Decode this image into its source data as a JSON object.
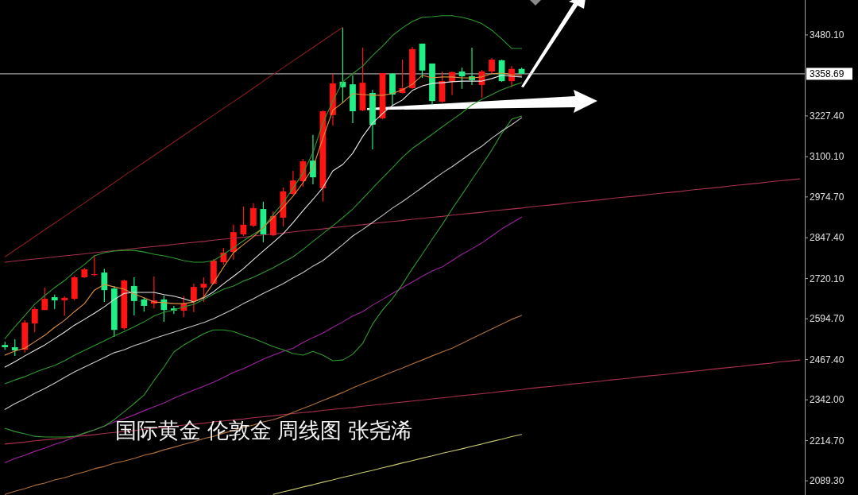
{
  "chart_data": {
    "type": "candlestick",
    "title": "国际黄金 伦敦金 周线图 张尧浠",
    "categories": [
      null,
      null,
      null,
      null,
      null,
      null,
      null,
      null,
      null,
      null,
      null,
      null,
      null,
      null,
      null,
      null,
      null,
      null,
      null,
      null,
      null,
      null,
      null,
      null,
      null,
      null,
      null,
      null,
      null,
      null,
      null,
      null,
      null,
      null,
      null,
      null,
      null,
      null,
      null,
      null,
      null,
      null,
      null,
      null,
      null,
      null,
      null,
      null,
      null,
      null,
      null,
      null,
      null,
      null,
      null,
      null,
      null,
      null,
      null,
      null,
      null,
      null,
      null,
      null,
      null,
      null,
      null,
      null,
      null,
      null,
      null,
      null,
      null,
      null,
      null,
      null,
      null,
      null,
      null,
      null,
      null
    ],
    "ohlc": [
      [
        2513,
        2523,
        2498,
        2506
      ],
      [
        2506,
        2531,
        2479,
        2496
      ],
      [
        2498,
        2590,
        2489,
        2583
      ],
      [
        2580,
        2632,
        2553,
        2625
      ],
      [
        2622,
        2692,
        2622,
        2657
      ],
      [
        2662,
        2670,
        2625,
        2652
      ],
      [
        2652,
        2665,
        2605,
        2660
      ],
      [
        2657,
        2729,
        2652,
        2724
      ],
      [
        2724,
        2754,
        2722,
        2749
      ],
      [
        2731,
        2793,
        2727,
        2734
      ],
      [
        2739,
        2751,
        2647,
        2684
      ],
      [
        2689,
        2697,
        2538,
        2560
      ],
      [
        2565,
        2717,
        2560,
        2714
      ],
      [
        2697,
        2724,
        2605,
        2650
      ],
      [
        2655,
        2660,
        2617,
        2635
      ],
      [
        2642,
        2727,
        2627,
        2652
      ],
      [
        2655,
        2667,
        2585,
        2622
      ],
      [
        2627,
        2635,
        2610,
        2620
      ],
      [
        2620,
        2665,
        2600,
        2642
      ],
      [
        2650,
        2704,
        2615,
        2694
      ],
      [
        2692,
        2724,
        2647,
        2704
      ],
      [
        2704,
        2781,
        2702,
        2776
      ],
      [
        2771,
        2816,
        2764,
        2801
      ],
      [
        2803,
        2888,
        2779,
        2865
      ],
      [
        2858,
        2945,
        2853,
        2888
      ],
      [
        2885,
        2955,
        2880,
        2940
      ],
      [
        2937,
        2960,
        2833,
        2858
      ],
      [
        2855,
        2930,
        2853,
        2915
      ],
      [
        2910,
        3004,
        2883,
        2992
      ],
      [
        2984,
        3056,
        2982,
        3026
      ],
      [
        3024,
        3093,
        3007,
        3086
      ],
      [
        3088,
        3168,
        3014,
        3036
      ],
      [
        3002,
        3245,
        2960,
        3242
      ],
      [
        3230,
        3359,
        3197,
        3329
      ],
      [
        3334,
        3502,
        3267,
        3317
      ],
      [
        3326,
        3354,
        3205,
        3242
      ],
      [
        3245,
        3440,
        3242,
        3331
      ],
      [
        3299,
        3309,
        3123,
        3200
      ],
      [
        3220,
        3361,
        3217,
        3361
      ],
      [
        3359,
        3361,
        3260,
        3294
      ],
      [
        3299,
        3403,
        3297,
        3314
      ],
      [
        3314,
        3443,
        3312,
        3436
      ],
      [
        3453,
        3453,
        3346,
        3369
      ],
      [
        3391,
        3391,
        3262,
        3274
      ],
      [
        3272,
        3366,
        3269,
        3336
      ],
      [
        3334,
        3366,
        3292,
        3364
      ],
      [
        3366,
        3378,
        3312,
        3351
      ],
      [
        3351,
        3440,
        3324,
        3339
      ],
      [
        3324,
        3371,
        3284,
        3366
      ],
      [
        3366,
        3408,
        3361,
        3403
      ],
      [
        3401,
        3403,
        3334,
        3336
      ],
      [
        3336,
        3383,
        3317,
        3374
      ],
      [
        3374,
        3378,
        3359,
        3359
      ],
      null,
      null,
      null,
      null,
      null,
      null,
      null,
      null,
      null,
      null,
      null,
      null,
      null,
      null,
      null,
      null,
      null,
      null,
      null,
      null,
      null,
      null,
      null,
      null,
      null,
      null,
      null,
      null
    ],
    "colors": [
      "#22ee88",
      "#22ee88",
      "#ff1414",
      "#ff1414",
      "#ff1414",
      "#22ee88",
      "#ff1414",
      "#ff1414",
      "#ff1414",
      "#ff1414",
      "#22ee88",
      "#22ee88",
      "#ff1414",
      "#22ee88",
      "#22ee88",
      "#ff1414",
      "#22ee88",
      "#22ee88",
      "#ff1414",
      "#ff1414",
      "#ff1414",
      "#ff1414",
      "#ff1414",
      "#ff1414",
      "#ff1414",
      "#ff1414",
      "#22ee88",
      "#ff1414",
      "#ff1414",
      "#ff1414",
      "#ff1414",
      "#22ee88",
      "#ff1414",
      "#ff1414",
      "#22ee88",
      "#22ee88",
      "#ff1414",
      "#22ee88",
      "#ff1414",
      "#22ee88",
      "#ff1414",
      "#ff1414",
      "#22ee88",
      "#22ee88",
      "#ff1414",
      "#ff1414",
      "#22ee88",
      "#22ee88",
      "#ff1414",
      "#ff1414",
      "#22ee88",
      "#ff1414",
      "#22ee88",
      null,
      null,
      null,
      null,
      null,
      null,
      null,
      null,
      null,
      null,
      null,
      null,
      null,
      null,
      null,
      null,
      null,
      null,
      null,
      null,
      null,
      null,
      null,
      null,
      null,
      null,
      null,
      null
    ],
    "ylim": [
      2045,
      3589
    ],
    "yticks": [
      {
        "value": 3480.1,
        "label": "3480.10"
      },
      {
        "value": 3227.4,
        "label": "3227.40"
      },
      {
        "value": 3100.1,
        "label": "3100.10"
      },
      {
        "value": 2974.7,
        "label": "2974.70"
      },
      {
        "value": 2847.4,
        "label": "2847.40"
      },
      {
        "value": 2720.1,
        "label": "2720.10"
      },
      {
        "value": 2594.7,
        "label": "2594.70"
      },
      {
        "value": 2467.4,
        "label": "2467.40"
      },
      {
        "value": 2342,
        "label": "2342.00"
      },
      {
        "value": 2214.7,
        "label": "2214.70"
      },
      {
        "value": 2089.3,
        "label": "2089.30"
      }
    ],
    "tick_labels": "y",
    "ref_lines": [
      {
        "axis": "y",
        "value": 3358.69,
        "label": "3358.69",
        "color": "#c8c8c8"
      }
    ],
    "series": [
      {
        "type": "line",
        "color": "#8a1c1c",
        "values": [
          2788,
          2809,
          2830,
          2851,
          2872,
          2893,
          2914,
          2935,
          2956,
          2977,
          2998,
          3019,
          3041,
          3062,
          3083,
          3104,
          3125,
          3146,
          3167,
          3188,
          3209,
          3230,
          3251,
          3272,
          3293,
          3314,
          3336,
          3357,
          3378,
          3399,
          3420,
          3441,
          3462,
          3483,
          3504,
          null,
          null,
          null,
          null,
          null,
          null,
          null,
          null,
          null,
          null,
          null,
          null,
          null,
          null,
          null,
          null,
          null,
          null,
          null,
          null,
          null,
          null,
          null,
          null,
          null,
          null,
          null,
          null,
          null,
          null,
          null,
          null,
          null,
          null,
          null,
          null,
          null,
          null,
          null,
          null,
          null,
          null,
          null,
          null,
          null,
          null
        ]
      },
      {
        "type": "line",
        "color": "#a8304e",
        "values": [
          2771,
          2775,
          2778,
          2781,
          2784,
          2788,
          2791,
          2794,
          2797,
          2801,
          2804,
          2807,
          2810,
          2814,
          2817,
          2820,
          2823,
          2827,
          2830,
          2833,
          2836,
          2840,
          2843,
          2846,
          2849,
          2853,
          2856,
          2859,
          2862,
          2866,
          2869,
          2872,
          2875,
          2879,
          2882,
          2885,
          2888,
          2892,
          2895,
          2898,
          2901,
          2905,
          2908,
          2911,
          2914,
          2918,
          2921,
          2924,
          2927,
          2931,
          2934,
          2937,
          2940,
          2944,
          2947,
          2950,
          2953,
          2957,
          2960,
          2963,
          2966,
          2970,
          2973,
          2976,
          2979,
          2983,
          2986,
          2989,
          2992,
          2996,
          2999,
          3002,
          3005,
          3009,
          3012,
          3015,
          3018,
          3022,
          3025,
          3028,
          3031
        ]
      },
      {
        "type": "line",
        "color": "#a8304e",
        "values": [
          2204,
          2207,
          2210,
          2214,
          2217,
          2220,
          2223,
          2227,
          2230,
          2233,
          2237,
          2240,
          2243,
          2246,
          2250,
          2253,
          2256,
          2259,
          2263,
          2266,
          2269,
          2273,
          2276,
          2279,
          2282,
          2286,
          2289,
          2292,
          2296,
          2299,
          2302,
          2305,
          2309,
          2312,
          2315,
          2318,
          2322,
          2325,
          2328,
          2332,
          2335,
          2338,
          2341,
          2345,
          2348,
          2351,
          2355,
          2358,
          2361,
          2364,
          2368,
          2371,
          2374,
          2378,
          2381,
          2384,
          2387,
          2391,
          2394,
          2397,
          2400,
          2404,
          2407,
          2410,
          2414,
          2417,
          2420,
          2423,
          2427,
          2430,
          2433,
          2437,
          2440,
          2443,
          2446,
          2450,
          2453,
          2456,
          2460,
          2463,
          2466
        ]
      },
      {
        "type": "line",
        "color": "#c8c870",
        "values": [
          null,
          null,
          null,
          null,
          null,
          null,
          null,
          null,
          null,
          null,
          null,
          null,
          null,
          null,
          null,
          null,
          null,
          null,
          null,
          null,
          null,
          null,
          null,
          null,
          null,
          null,
          null,
          2047,
          2055,
          2062,
          2070,
          2077,
          2085,
          2092,
          2100,
          2107,
          2115,
          2122,
          2130,
          2137,
          2145,
          2152,
          2160,
          2167,
          2175,
          2182,
          2189,
          2197,
          2204,
          2212,
          2219,
          2227,
          2234,
          null,
          null,
          null,
          null,
          null,
          null,
          null,
          null,
          null,
          null,
          null,
          null,
          null,
          null,
          null,
          null,
          null,
          null,
          null,
          null,
          null,
          null,
          null,
          null,
          null,
          null,
          null,
          null
        ]
      },
      {
        "type": "line",
        "color": "#b0703a",
        "values": [
          2047,
          2057,
          2065,
          2075,
          2082,
          2092,
          2099,
          2109,
          2117,
          2127,
          2134,
          2144,
          2151,
          2159,
          2169,
          2176,
          2186,
          2194,
          2203,
          2211,
          2221,
          2228,
          2238,
          2246,
          2256,
          2263,
          2273,
          2280,
          2290,
          2303,
          2315,
          2327,
          2340,
          2352,
          2365,
          2379,
          2392,
          2404,
          2417,
          2429,
          2441,
          2454,
          2466,
          2479,
          2491,
          2503,
          2518,
          2533,
          2548,
          2563,
          2578,
          2593,
          2605,
          null,
          null,
          null,
          null,
          null,
          null,
          null,
          null,
          null,
          null,
          null,
          null,
          null,
          null,
          null,
          null,
          null,
          null,
          null,
          null,
          null,
          null,
          null,
          null,
          null,
          null,
          null,
          null
        ]
      },
      {
        "type": "line",
        "color": "#a020a0",
        "values": [
          2146,
          2159,
          2169,
          2181,
          2191,
          2203,
          2213,
          2226,
          2238,
          2248,
          2260,
          2273,
          2283,
          2295,
          2308,
          2320,
          2332,
          2347,
          2360,
          2372,
          2384,
          2397,
          2412,
          2427,
          2439,
          2454,
          2469,
          2481,
          2493,
          2503,
          2521,
          2536,
          2550,
          2568,
          2585,
          2603,
          2617,
          2637,
          2655,
          2674,
          2692,
          2709,
          2727,
          2744,
          2756,
          2776,
          2796,
          2813,
          2831,
          2853,
          2875,
          2893,
          2912,
          null,
          null,
          null,
          null,
          null,
          null,
          null,
          null,
          null,
          null,
          null,
          null,
          null,
          null,
          null,
          null,
          null,
          null,
          null,
          null,
          null,
          null,
          null,
          null,
          null,
          null,
          null,
          null
        ]
      },
      {
        "type": "line",
        "color": "#2e9a2e",
        "values": [
          2253,
          2243,
          2236,
          2228,
          2226,
          2226,
          2226,
          2228,
          2238,
          2248,
          2260,
          2280,
          2305,
          2330,
          2357,
          2402,
          2444,
          2491,
          2513,
          2531,
          2548,
          2560,
          2560,
          2555,
          2543,
          2533,
          2521,
          2508,
          2498,
          2486,
          2481,
          2493,
          2481,
          2464,
          2466,
          2484,
          2518,
          2578,
          2622,
          2657,
          2702,
          2751,
          2796,
          2843,
          2888,
          2937,
          2982,
          3029,
          3074,
          3121,
          3173,
          3217,
          3227,
          null,
          null,
          null,
          null,
          null,
          null,
          null,
          null,
          null,
          null,
          null,
          null,
          null,
          null,
          null,
          null,
          null,
          null,
          null,
          null,
          null,
          null,
          null,
          null,
          null,
          null,
          null,
          null
        ]
      },
      {
        "type": "line",
        "color": "#2e9a2e",
        "values": [
          2533,
          2570,
          2605,
          2640,
          2667,
          2692,
          2714,
          2741,
          2764,
          2791,
          2801,
          2806,
          2808,
          2808,
          2803,
          2796,
          2791,
          2784,
          2776,
          2771,
          2771,
          2776,
          2796,
          2816,
          2838,
          2858,
          2878,
          2920,
          2957,
          3002,
          3049,
          3113,
          3205,
          3274,
          3334,
          3359,
          3383,
          3416,
          3445,
          3478,
          3502,
          3522,
          3535,
          3537,
          3540,
          3540,
          3535,
          3527,
          3515,
          3495,
          3468,
          3438,
          3438,
          null,
          null,
          null,
          null,
          null,
          null,
          null,
          null,
          null,
          null,
          null,
          null,
          null,
          null,
          null,
          null,
          null,
          null,
          null,
          null,
          null,
          null,
          null,
          null,
          null,
          null,
          null,
          null
        ]
      },
      {
        "type": "line",
        "color": "#2e9a2e",
        "values": [
          2392,
          2404,
          2414,
          2427,
          2439,
          2449,
          2464,
          2481,
          2496,
          2511,
          2526,
          2541,
          2555,
          2570,
          2585,
          2603,
          2615,
          2622,
          2632,
          2640,
          2655,
          2672,
          2687,
          2697,
          2712,
          2724,
          2739,
          2754,
          2771,
          2788,
          2811,
          2836,
          2860,
          2885,
          2910,
          2937,
          2969,
          3002,
          3034,
          3066,
          3098,
          3126,
          3148,
          3170,
          3193,
          3215,
          3237,
          3262,
          3279,
          3294,
          3309,
          3321,
          3331,
          null,
          null,
          null,
          null,
          null,
          null,
          null,
          null,
          null,
          null,
          null,
          null,
          null,
          null,
          null,
          null,
          null,
          null,
          null,
          null,
          null,
          null,
          null,
          null,
          null,
          null,
          null,
          null
        ]
      },
      {
        "type": "line",
        "color": "#c8c8c8",
        "values": [
          2312,
          2330,
          2345,
          2362,
          2377,
          2394,
          2412,
          2429,
          2444,
          2459,
          2474,
          2489,
          2498,
          2511,
          2521,
          2533,
          2543,
          2553,
          2563,
          2573,
          2583,
          2595,
          2610,
          2625,
          2642,
          2657,
          2674,
          2689,
          2704,
          2722,
          2739,
          2759,
          2776,
          2801,
          2826,
          2853,
          2873,
          2895,
          2917,
          2940,
          2960,
          2982,
          3004,
          3027,
          3049,
          3069,
          3091,
          3113,
          3133,
          3158,
          3180,
          3200,
          3222,
          null,
          null,
          null,
          null,
          null,
          null,
          null,
          null,
          null,
          null,
          null,
          null,
          null,
          null,
          null,
          null,
          null,
          null,
          null,
          null,
          null,
          null,
          null,
          null,
          null,
          null,
          null,
          null
        ]
      },
      {
        "type": "line",
        "color": "#e8e8e8",
        "values": [
          2444,
          2461,
          2479,
          2496,
          2513,
          2533,
          2553,
          2575,
          2593,
          2612,
          2632,
          2655,
          2674,
          2677,
          2677,
          2677,
          2670,
          2665,
          2657,
          2647,
          2660,
          2679,
          2704,
          2727,
          2751,
          2779,
          2806,
          2833,
          2860,
          2895,
          2932,
          2967,
          3004,
          3056,
          3076,
          3111,
          3163,
          3205,
          3235,
          3260,
          3277,
          3307,
          3321,
          3329,
          3331,
          3334,
          3336,
          3336,
          3336,
          3344,
          3354,
          3351,
          3349,
          null,
          null,
          null,
          null,
          null,
          null,
          null,
          null,
          null,
          null,
          null,
          null,
          null,
          null,
          null,
          null,
          null,
          null,
          null,
          null,
          null,
          null,
          null,
          null,
          null,
          null,
          null,
          null
        ]
      },
      {
        "type": "line",
        "color": "#e09040",
        "values": [
          2481,
          2494,
          2503,
          2523,
          2543,
          2568,
          2590,
          2617,
          2642,
          2684,
          2702,
          2694,
          2687,
          2672,
          2660,
          2647,
          2645,
          2642,
          2642,
          2647,
          2662,
          2707,
          2756,
          2801,
          2826,
          2850,
          2880,
          2910,
          2942,
          2977,
          3019,
          3066,
          3158,
          3245,
          3269,
          3297,
          3294,
          3292,
          3292,
          3297,
          3309,
          3326,
          3354,
          3346,
          3349,
          3349,
          3346,
          3346,
          3349,
          3359,
          3361,
          3356,
          3354,
          null,
          null,
          null,
          null,
          null,
          null,
          null,
          null,
          null,
          null,
          null,
          null,
          null,
          null,
          null,
          null,
          null,
          null,
          null,
          null,
          null,
          null,
          null,
          null,
          null,
          null,
          null,
          null
        ]
      }
    ]
  }
}
